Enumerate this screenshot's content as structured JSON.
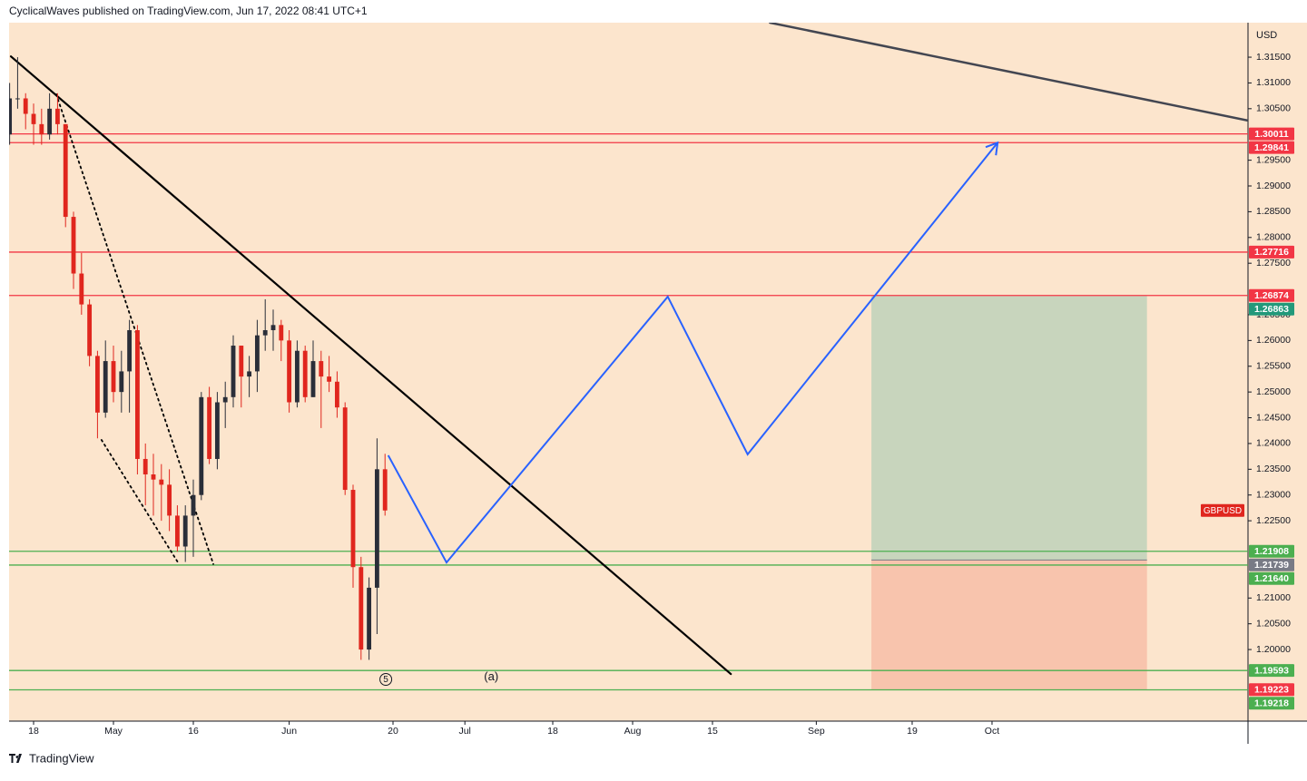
{
  "header": {
    "publisher": "CyclicalWaves published on TradingView.com, Jun 17, 2022 08:41 UTC+1"
  },
  "footer": {
    "brand": "TradingView"
  },
  "chart_data": {
    "type": "candlestick",
    "symbol": "GBPUSD",
    "y_unit": "USD",
    "up_color": "#2a2e39",
    "down_color": "#e0261e",
    "symbol_color": "#e0261e",
    "x": [
      -3,
      -2,
      -1,
      0,
      1,
      2,
      3,
      4,
      5,
      6,
      7,
      8,
      9,
      10,
      11,
      12,
      13,
      14,
      15,
      16,
      17,
      18,
      19,
      20,
      21,
      22,
      23,
      24,
      25,
      26,
      27,
      28,
      29,
      30,
      31,
      32,
      33,
      34,
      35,
      36,
      37,
      38,
      39,
      40,
      41,
      42,
      43,
      44
    ],
    "candles": {
      "open": [
        1.3,
        1.307,
        1.307,
        1.304,
        1.302,
        1.3,
        1.305,
        1.302,
        1.284,
        1.273,
        1.267,
        1.257,
        1.246,
        1.256,
        1.25,
        1.254,
        1.262,
        1.237,
        1.234,
        1.233,
        1.232,
        1.226,
        1.22,
        1.226,
        1.23,
        1.249,
        1.237,
        1.248,
        1.249,
        1.259,
        1.253,
        1.254,
        1.261,
        1.262,
        1.263,
        1.26,
        1.248,
        1.258,
        1.249,
        1.256,
        1.253,
        1.252,
        1.247,
        1.231,
        1.216,
        1.2,
        1.212,
        1.235
      ],
      "high": [
        1.31,
        1.315,
        1.308,
        1.306,
        1.305,
        1.308,
        1.308,
        1.302,
        1.285,
        1.277,
        1.268,
        1.258,
        1.26,
        1.259,
        1.258,
        1.264,
        1.263,
        1.24,
        1.238,
        1.236,
        1.235,
        1.228,
        1.228,
        1.233,
        1.25,
        1.251,
        1.25,
        1.252,
        1.261,
        1.259,
        1.257,
        1.264,
        1.268,
        1.266,
        1.264,
        1.262,
        1.26,
        1.259,
        1.26,
        1.258,
        1.257,
        1.254,
        1.248,
        1.232,
        1.218,
        1.214,
        1.241,
        1.238
      ],
      "low": [
        1.298,
        1.305,
        1.301,
        1.298,
        1.298,
        1.299,
        1.3,
        1.282,
        1.27,
        1.265,
        1.255,
        1.241,
        1.245,
        1.248,
        1.246,
        1.246,
        1.234,
        1.228,
        1.226,
        1.225,
        1.223,
        1.219,
        1.217,
        1.218,
        1.229,
        1.236,
        1.235,
        1.243,
        1.247,
        1.247,
        1.249,
        1.25,
        1.258,
        1.258,
        1.256,
        1.246,
        1.247,
        1.248,
        1.249,
        1.243,
        1.25,
        1.245,
        1.23,
        1.212,
        1.198,
        1.198,
        1.203,
        1.226
      ],
      "close": [
        1.307,
        1.307,
        1.304,
        1.302,
        1.3,
        1.305,
        1.302,
        1.284,
        1.273,
        1.267,
        1.257,
        1.246,
        1.256,
        1.25,
        1.254,
        1.262,
        1.237,
        1.234,
        1.233,
        1.232,
        1.226,
        1.22,
        1.226,
        1.23,
        1.249,
        1.237,
        1.248,
        1.249,
        1.259,
        1.253,
        1.254,
        1.261,
        1.262,
        1.263,
        1.26,
        1.248,
        1.258,
        1.249,
        1.256,
        1.253,
        1.252,
        1.247,
        1.231,
        1.216,
        1.2,
        1.212,
        1.235,
        1.227
      ]
    },
    "xlim": [
      -3.07,
      152.05
    ],
    "ylim": [
      1.1861,
      1.3217
    ],
    "xticks": [
      {
        "value": 0,
        "label": "18"
      },
      {
        "value": 10,
        "label": "May"
      },
      {
        "value": 20,
        "label": "16"
      },
      {
        "value": 32,
        "label": "Jun"
      },
      {
        "value": 45,
        "label": "20"
      },
      {
        "value": 54,
        "label": "Jul"
      },
      {
        "value": 65,
        "label": "18"
      },
      {
        "value": 75,
        "label": "Aug"
      },
      {
        "value": 85,
        "label": "15"
      },
      {
        "value": 98,
        "label": "Sep"
      },
      {
        "value": 110,
        "label": "19"
      },
      {
        "value": 120,
        "label": "Oct"
      }
    ],
    "yticks": [
      {
        "value": 1.315,
        "label": "1.31500"
      },
      {
        "value": 1.31,
        "label": "1.31000"
      },
      {
        "value": 1.305,
        "label": "1.30500"
      },
      {
        "value": 1.295,
        "label": "1.29500"
      },
      {
        "value": 1.29,
        "label": "1.29000"
      },
      {
        "value": 1.285,
        "label": "1.28500"
      },
      {
        "value": 1.28,
        "label": "1.28000"
      },
      {
        "value": 1.275,
        "label": "1.27500"
      },
      {
        "value": 1.265,
        "label": "1.26500"
      },
      {
        "value": 1.26,
        "label": "1.26000"
      },
      {
        "value": 1.255,
        "label": "1.25500"
      },
      {
        "value": 1.25,
        "label": "1.25000"
      },
      {
        "value": 1.245,
        "label": "1.24500"
      },
      {
        "value": 1.24,
        "label": "1.24000"
      },
      {
        "value": 1.235,
        "label": "1.23500"
      },
      {
        "value": 1.23,
        "label": "1.23000"
      },
      {
        "value": 1.225,
        "label": "1.22500"
      },
      {
        "value": 1.21,
        "label": "1.21000"
      },
      {
        "value": 1.205,
        "label": "1.20500"
      },
      {
        "value": 1.2,
        "label": "1.20000"
      }
    ],
    "grid": false,
    "levels": [
      {
        "price": 1.30011,
        "color": "#f23645"
      },
      {
        "price": 1.29841,
        "color": "#f23645"
      },
      {
        "price": 1.27716,
        "color": "#f23645"
      },
      {
        "price": 1.26874,
        "color": "#f23645"
      },
      {
        "price": 1.21908,
        "color": "#4caf50"
      },
      {
        "price": {
          "value": 1.2164,
          "label": "1.21640"
        },
        "color": "#4caf50"
      },
      {
        "price": 1.19593,
        "color": "#4caf50"
      },
      {
        "price": 1.19218,
        "color": "#4caf50"
      }
    ],
    "position": {
      "x": [
        104.9,
        139.4
      ],
      "target": 1.26863,
      "entry": 1.21739,
      "stop": 1.19223,
      "target_color": "#22997a",
      "entry_color": "#787b86",
      "stop_color": "#f23645",
      "profit_fill": "#c8d5bd",
      "loss_fill": "#f8c4ad"
    },
    "trend_lines": [
      {
        "x": [
          -2.84,
          87.3
        ],
        "y": [
          1.31515,
          1.19525
        ],
        "color": "#000000",
        "width": 2.2,
        "dashed": false
      },
      {
        "x": [
          92.2,
          152.05
        ],
        "y": [
          1.3217,
          1.3027
        ],
        "color": "#434651",
        "width": 2.5,
        "dashed": false
      },
      {
        "x": [
          2.84,
          22.5
        ],
        "y": [
          1.3078,
          1.2166
        ],
        "color": "#000000",
        "width": 1.8,
        "dashed": true
      },
      {
        "x": [
          8.5,
          18.2
        ],
        "y": [
          1.2407,
          1.2166
        ],
        "color": "#000000",
        "width": 1.8,
        "dashed": true
      }
    ],
    "wave_path": {
      "x": [
        44.4,
        51.7,
        79.4,
        89.4,
        120.7
      ],
      "y": [
        1.2377,
        1.2169,
        1.2685,
        1.2379,
        1.2984
      ],
      "color": "#2962ff"
    },
    "annotations": [
      {
        "text": "5",
        "x": 44.1,
        "price": 1.1942,
        "circled": true
      },
      {
        "text": "(a)",
        "x": 57.3,
        "price": 1.1947,
        "circled": false
      }
    ]
  }
}
